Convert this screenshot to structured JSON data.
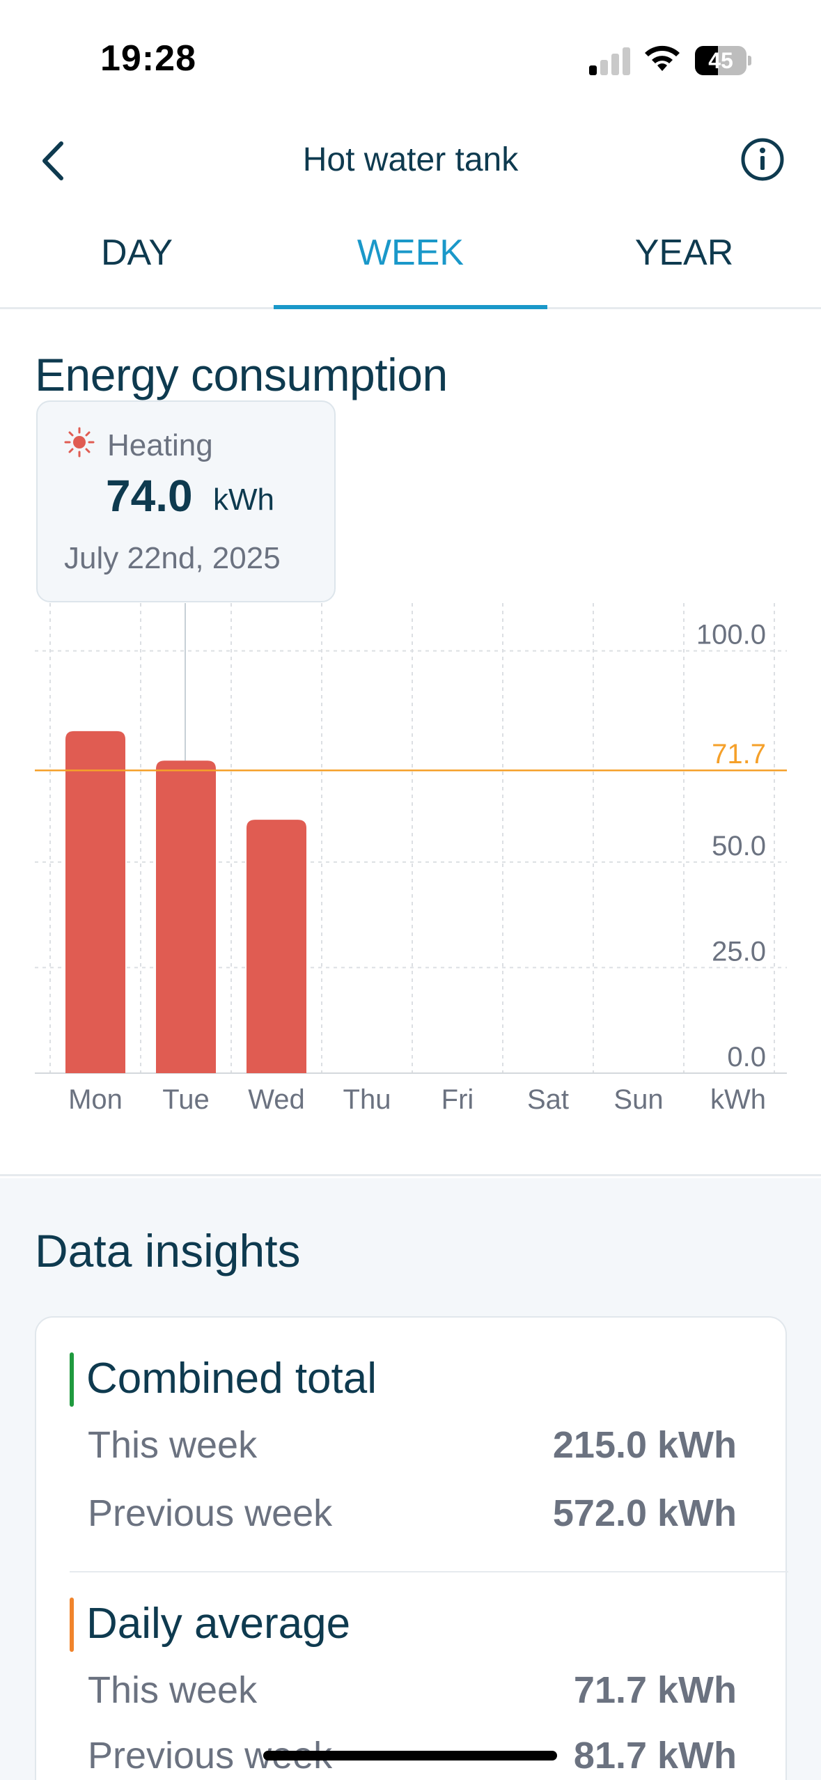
{
  "status_bar": {
    "time": "19:28",
    "battery": "45",
    "battery_level": 0.45
  },
  "header": {
    "title": "Hot water tank",
    "back_icon": "chevron-left-icon",
    "info_icon": "info-circle-icon"
  },
  "tabs": [
    {
      "label": "DAY",
      "active": false
    },
    {
      "label": "WEEK",
      "active": true
    },
    {
      "label": "YEAR",
      "active": false
    }
  ],
  "energy": {
    "title": "Energy consumption",
    "tooltip": {
      "series": "Heating",
      "value": "74.0",
      "unit": "kWh",
      "date": "July 22nd, 2025",
      "icon": "sun-icon"
    }
  },
  "chart_data": {
    "type": "bar",
    "categories": [
      "Mon",
      "Tue",
      "Wed",
      "Thu",
      "Fri",
      "Sat",
      "Sun"
    ],
    "series": [
      {
        "name": "Heating",
        "values": [
          81,
          74,
          60,
          null,
          null,
          null,
          null
        ],
        "color": "#e05c52"
      }
    ],
    "y_ticks": [
      "100.0",
      "50.0",
      "25.0",
      "0.0"
    ],
    "ylim": [
      0,
      110
    ],
    "y_unit": "kWh",
    "average_line": {
      "value": 71.7,
      "label": "71.7",
      "color": "#f5a02a"
    },
    "selected_category": "Tue",
    "grid": true
  },
  "insights": {
    "title": "Data insights",
    "groups": [
      {
        "title": "Combined total",
        "accent": "#1f9a3e",
        "rows": [
          {
            "label": "This week",
            "value": "215.0 kWh"
          },
          {
            "label": "Previous week",
            "value": "572.0 kWh"
          }
        ]
      },
      {
        "title": "Daily average",
        "accent": "#f0842c",
        "rows": [
          {
            "label": "This week",
            "value": "71.7 kWh"
          },
          {
            "label": "Previous week",
            "value": "81.7 kWh"
          }
        ]
      }
    ]
  }
}
